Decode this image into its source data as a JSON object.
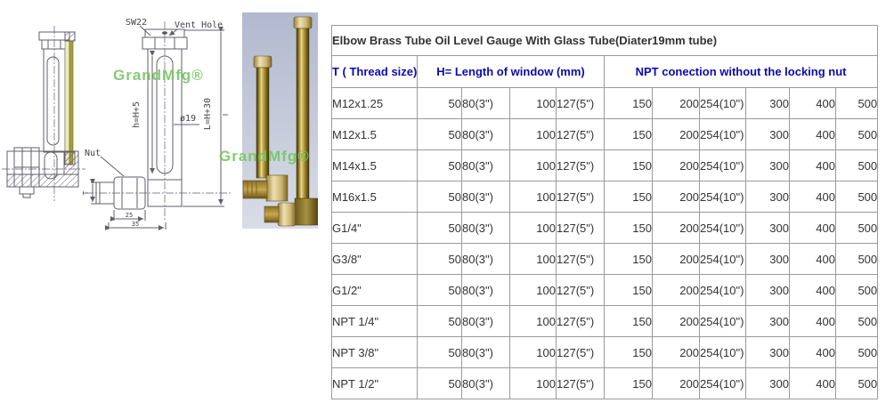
{
  "colors": {
    "header_blue": "#0b0bb0",
    "border_gray": "#9b9b9b",
    "watermark_green": "#78c464",
    "glass_yellow": "#a89f35",
    "drawing_line": "#5f5f6b"
  },
  "diagram": {
    "watermark": "GrandMfg®",
    "labels": {
      "sw": "SW22",
      "vent_hole": "Vent Hole",
      "h_formula": "h=H+5",
      "diameter": "ø19",
      "l_formula": "L=H+30",
      "nut": "Nut",
      "thread": "T",
      "dim25": "25",
      "dim35": "35"
    }
  },
  "photo": {
    "watermark": "GrandMfg®"
  },
  "table": {
    "title": "Elbow Brass Tube Oil Level Gauge With Glass Tube(Diater19mm tube)",
    "headers": {
      "thread": "T ( Thread size)",
      "window": "H= Length of window (mm)",
      "npt": "NPT conection without the locking nut"
    },
    "rows": [
      {
        "thread": "M12x1.25",
        "values": [
          "50",
          "80(3\")",
          "100",
          "127(5\")",
          "150",
          "200",
          "254(10\")",
          "300",
          "400",
          "500"
        ]
      },
      {
        "thread": "M12x1.5",
        "values": [
          "50",
          "80(3\")",
          "100",
          "127(5\")",
          "150",
          "200",
          "254(10\")",
          "300",
          "400",
          "500"
        ]
      },
      {
        "thread": "M14x1.5",
        "values": [
          "50",
          "80(3\")",
          "100",
          "127(5\")",
          "150",
          "200",
          "254(10\")",
          "300",
          "400",
          "500"
        ]
      },
      {
        "thread": "M16x1.5",
        "values": [
          "50",
          "80(3\")",
          "100",
          "127(5\")",
          "150",
          "200",
          "254(10\")",
          "300",
          "400",
          "500"
        ]
      },
      {
        "thread": "G1/4\"",
        "values": [
          "50",
          "80(3\")",
          "100",
          "127(5\")",
          "150",
          "200",
          "254(10\")",
          "300",
          "400",
          "500"
        ]
      },
      {
        "thread": "G3/8\"",
        "values": [
          "50",
          "80(3\")",
          "100",
          "127(5\")",
          "150",
          "200",
          "254(10\")",
          "300",
          "400",
          "500"
        ]
      },
      {
        "thread": "G1/2\"",
        "values": [
          "50",
          "80(3\")",
          "100",
          "127(5\")",
          "150",
          "200",
          "254(10\")",
          "300",
          "400",
          "500"
        ]
      },
      {
        "thread": "NPT 1/4\"",
        "values": [
          "50",
          "80(3\")",
          "100",
          "127(5\")",
          "150",
          "200",
          "254(10\")",
          "300",
          "400",
          "500"
        ]
      },
      {
        "thread": "NPT 3/8\"",
        "values": [
          "50",
          "80(3\")",
          "100",
          "127(5\")",
          "150",
          "200",
          "254(10\")",
          "300",
          "400",
          "500"
        ]
      },
      {
        "thread": "NPT 1/2\"",
        "values": [
          "50",
          "80(3\")",
          "100",
          "127(5\")",
          "150",
          "200",
          "254(10\")",
          "300",
          "400",
          "500"
        ]
      }
    ]
  }
}
